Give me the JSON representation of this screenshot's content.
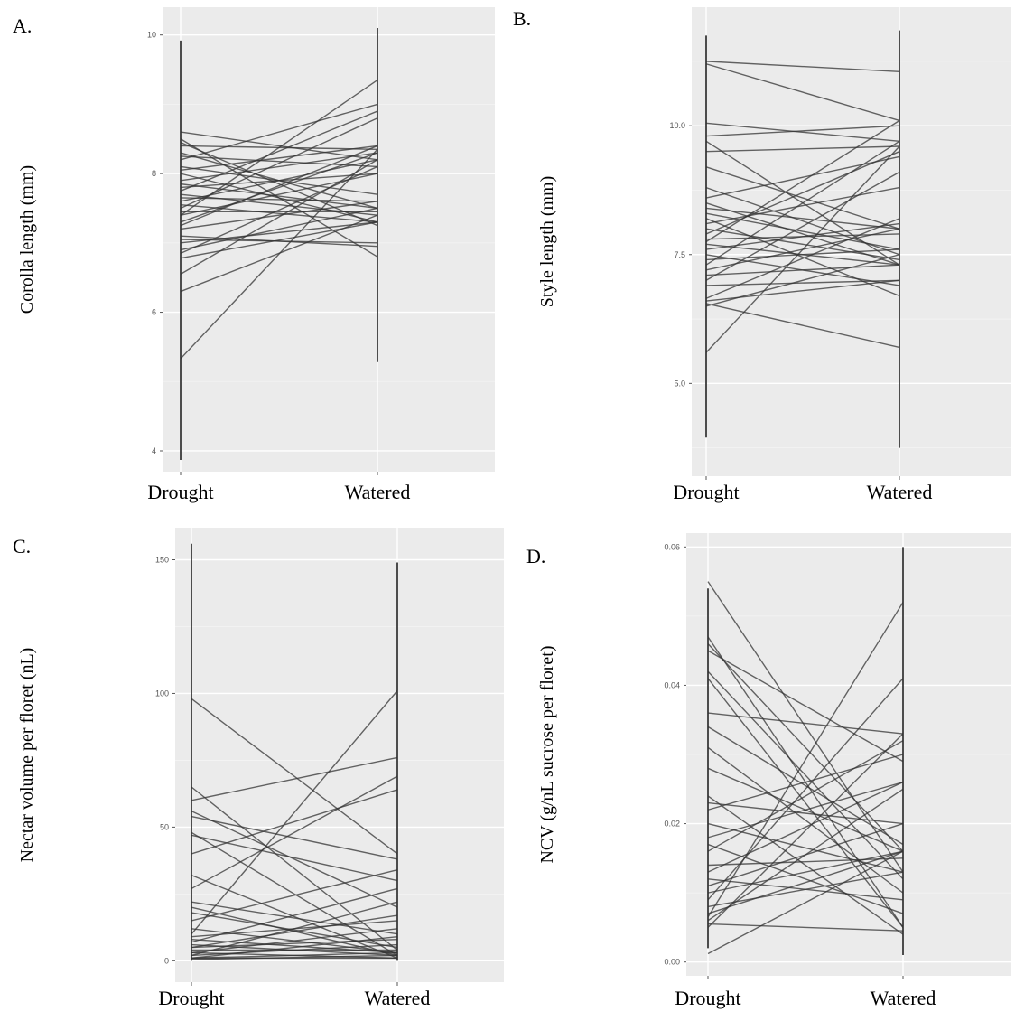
{
  "chart_data": [
    {
      "type": "line",
      "panel": "A.",
      "title": "",
      "xlabel": "",
      "ylabel": "Corolla length (mm)",
      "categories": [
        "Drought",
        "Watered"
      ],
      "ylim": [
        3.7,
        10.4
      ],
      "yticks": [
        4,
        6,
        8,
        10
      ],
      "yticklabels": [
        "4",
        "6",
        "8",
        "10"
      ],
      "range_lines": [
        [
          3.87,
          9.92
        ],
        [
          5.28,
          10.1
        ]
      ],
      "pairs": [
        [
          5.33,
          8.35
        ],
        [
          6.3,
          7.4
        ],
        [
          6.55,
          8.2
        ],
        [
          6.78,
          7.3
        ],
        [
          6.85,
          8.1
        ],
        [
          6.9,
          7.5
        ],
        [
          7.0,
          7.3
        ],
        [
          7.05,
          7.0
        ],
        [
          7.1,
          6.95
        ],
        [
          7.2,
          7.6
        ],
        [
          7.25,
          8.4
        ],
        [
          7.3,
          8.3
        ],
        [
          7.4,
          8.0
        ],
        [
          7.4,
          9.35
        ],
        [
          7.45,
          7.45
        ],
        [
          7.5,
          8.8
        ],
        [
          7.55,
          7.3
        ],
        [
          7.6,
          8.2
        ],
        [
          7.65,
          7.6
        ],
        [
          7.7,
          7.4
        ],
        [
          7.75,
          8.9
        ],
        [
          7.8,
          8.0
        ],
        [
          7.85,
          7.5
        ],
        [
          7.9,
          8.3
        ],
        [
          8.0,
          7.3
        ],
        [
          8.05,
          8.4
        ],
        [
          8.1,
          7.7
        ],
        [
          8.2,
          9.0
        ],
        [
          8.25,
          8.1
        ],
        [
          8.3,
          7.5
        ],
        [
          8.4,
          8.35
        ],
        [
          8.45,
          7.25
        ],
        [
          8.5,
          6.8
        ],
        [
          8.6,
          8.2
        ]
      ]
    },
    {
      "type": "line",
      "panel": "B.",
      "title": "",
      "xlabel": "",
      "ylabel": "Style length (mm)",
      "categories": [
        "Drought",
        "Watered"
      ],
      "ylim": [
        3.2,
        12.3
      ],
      "yticks": [
        5.0,
        7.5,
        10.0
      ],
      "yticklabels": [
        "5.0",
        "7.5",
        "10.0"
      ],
      "range_lines": [
        [
          3.95,
          11.75
        ],
        [
          3.75,
          11.85
        ]
      ],
      "pairs": [
        [
          5.6,
          9.6
        ],
        [
          6.5,
          7.5
        ],
        [
          6.55,
          5.7
        ],
        [
          6.6,
          7.0
        ],
        [
          6.65,
          8.2
        ],
        [
          6.9,
          7.0
        ],
        [
          7.0,
          9.1
        ],
        [
          7.1,
          7.3
        ],
        [
          7.2,
          8.0
        ],
        [
          7.3,
          9.7
        ],
        [
          7.4,
          7.6
        ],
        [
          7.5,
          6.9
        ],
        [
          7.6,
          8.1
        ],
        [
          7.7,
          7.3
        ],
        [
          7.75,
          10.1
        ],
        [
          7.8,
          7.9
        ],
        [
          7.9,
          9.5
        ],
        [
          8.0,
          7.4
        ],
        [
          8.1,
          8.8
        ],
        [
          8.2,
          6.7
        ],
        [
          8.3,
          7.6
        ],
        [
          8.4,
          8.0
        ],
        [
          8.5,
          7.3
        ],
        [
          8.6,
          9.4
        ],
        [
          8.8,
          7.5
        ],
        [
          9.2,
          8.0
        ],
        [
          9.5,
          9.6
        ],
        [
          9.7,
          7.3
        ],
        [
          9.8,
          10.0
        ],
        [
          10.05,
          9.7
        ],
        [
          11.2,
          10.1
        ],
        [
          11.25,
          11.05
        ]
      ]
    },
    {
      "type": "line",
      "panel": "C.",
      "title": "",
      "xlabel": "",
      "ylabel": "Nectar volume per floret (nL)",
      "categories": [
        "Drought",
        "Watered"
      ],
      "ylim": [
        -8,
        162
      ],
      "yticks": [
        0,
        50,
        100,
        150
      ],
      "yticklabels": [
        "0",
        "50",
        "100",
        "150"
      ],
      "range_lines": [
        [
          0,
          156
        ],
        [
          0,
          149
        ]
      ],
      "pairs": [
        [
          98,
          40
        ],
        [
          65,
          4
        ],
        [
          60,
          76
        ],
        [
          56,
          20
        ],
        [
          54,
          38
        ],
        [
          48,
          2
        ],
        [
          47,
          30
        ],
        [
          40,
          64
        ],
        [
          32,
          1
        ],
        [
          27,
          69
        ],
        [
          22,
          10
        ],
        [
          20,
          2
        ],
        [
          18,
          5
        ],
        [
          15,
          34
        ],
        [
          12,
          3
        ],
        [
          10,
          101
        ],
        [
          9,
          15
        ],
        [
          8,
          3
        ],
        [
          7,
          27
        ],
        [
          6,
          2
        ],
        [
          5,
          17
        ],
        [
          5,
          8
        ],
        [
          4,
          4
        ],
        [
          3,
          12
        ],
        [
          3,
          1
        ],
        [
          2,
          6
        ],
        [
          2,
          22
        ],
        [
          1,
          3
        ],
        [
          1,
          1
        ],
        [
          1,
          9
        ],
        [
          0.5,
          2
        ]
      ]
    },
    {
      "type": "line",
      "panel": "D.",
      "title": "",
      "xlabel": "",
      "ylabel": "NCV (g/nL sucrose per floret)",
      "categories": [
        "Drought",
        "Watered"
      ],
      "ylim": [
        -0.002,
        0.062
      ],
      "yticks": [
        0.0,
        0.02,
        0.04,
        0.06
      ],
      "yticklabels": [
        "0.00",
        "0.02",
        "0.04",
        "0.06"
      ],
      "range_lines": [
        [
          0.002,
          0.054
        ],
        [
          0.001,
          0.06
        ]
      ],
      "pairs": [
        [
          0.055,
          0.013
        ],
        [
          0.047,
          0.005
        ],
        [
          0.046,
          0.016
        ],
        [
          0.045,
          0.029
        ],
        [
          0.042,
          0.012
        ],
        [
          0.041,
          0.005
        ],
        [
          0.036,
          0.033
        ],
        [
          0.034,
          0.017
        ],
        [
          0.031,
          0.01
        ],
        [
          0.028,
          0.016
        ],
        [
          0.024,
          0.004
        ],
        [
          0.023,
          0.02
        ],
        [
          0.022,
          0.03
        ],
        [
          0.02,
          0.013
        ],
        [
          0.018,
          0.026
        ],
        [
          0.017,
          0.007
        ],
        [
          0.016,
          0.032
        ],
        [
          0.014,
          0.015
        ],
        [
          0.013,
          0.026
        ],
        [
          0.012,
          0.009
        ],
        [
          0.011,
          0.02
        ],
        [
          0.01,
          0.016
        ],
        [
          0.009,
          0.041
        ],
        [
          0.008,
          0.013
        ],
        [
          0.007,
          0.016
        ],
        [
          0.0065,
          0.052
        ],
        [
          0.006,
          0.025
        ],
        [
          0.0055,
          0.0045
        ],
        [
          0.005,
          0.033
        ],
        [
          0.0012,
          0.016
        ]
      ]
    }
  ]
}
